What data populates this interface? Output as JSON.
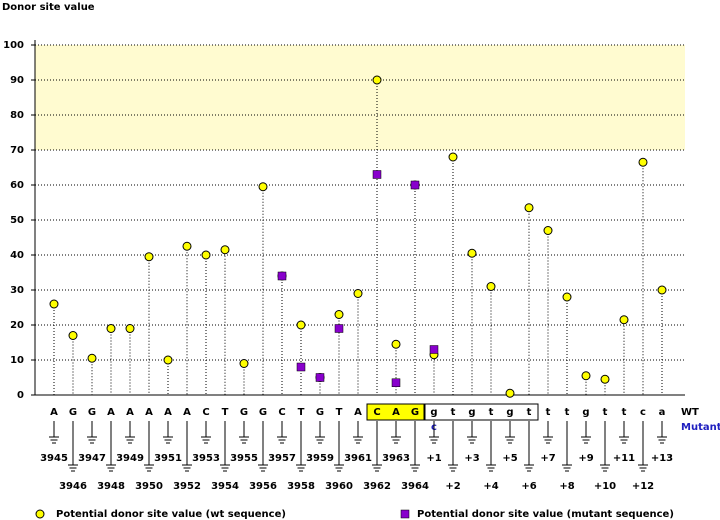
{
  "chart_data": {
    "type": "lollipop",
    "ylabel": "Donor site value",
    "categories": [
      "3945",
      "3946",
      "3947",
      "3948",
      "3949",
      "3950",
      "3951",
      "3952",
      "3953",
      "3954",
      "3955",
      "3956",
      "3957",
      "3958",
      "3959",
      "3960",
      "3961",
      "3962",
      "3963",
      "3964",
      "+1",
      "+2",
      "+3",
      "+4",
      "+5",
      "+6",
      "+7",
      "+8",
      "+9",
      "+10",
      "+11",
      "+12",
      "+13"
    ],
    "bases": [
      "A",
      "G",
      "G",
      "A",
      "A",
      "A",
      "A",
      "A",
      "C",
      "T",
      "G",
      "G",
      "C",
      "T",
      "G",
      "T",
      "A",
      "C",
      "A",
      "G",
      "g",
      "t",
      "g",
      "t",
      "g",
      "t",
      "t",
      "t",
      "g",
      "t",
      "t",
      "c",
      "a"
    ],
    "mutant_bases": [
      null,
      null,
      null,
      null,
      null,
      null,
      null,
      null,
      null,
      null,
      null,
      null,
      null,
      null,
      null,
      null,
      null,
      null,
      null,
      null,
      "c",
      null,
      null,
      null,
      null,
      null,
      null,
      null,
      null,
      null,
      null,
      null,
      null
    ],
    "row_labels": [
      "WT",
      "Mutant"
    ],
    "series": [
      {
        "name": "Potential donor site value (wt sequence)",
        "color": "#ffff00",
        "values": [
          26,
          17,
          10.5,
          19,
          19,
          39.5,
          10,
          42.5,
          40,
          41.5,
          9,
          59.5,
          34,
          20,
          5,
          23,
          29,
          90,
          14.5,
          60,
          11.5,
          68,
          40.5,
          31,
          0.5,
          53.5,
          47,
          28,
          5.5,
          4.5,
          21.5,
          66.5,
          30
        ]
      },
      {
        "name": "Potential donor site value (mutant sequence)",
        "color": "#8800cc",
        "values": [
          null,
          null,
          null,
          null,
          null,
          null,
          null,
          null,
          null,
          null,
          null,
          null,
          34,
          8,
          5,
          19,
          null,
          63,
          3.5,
          60,
          13,
          null,
          null,
          null,
          null,
          null,
          null,
          null,
          null,
          null,
          null,
          null,
          null
        ]
      }
    ],
    "ylim": [
      0,
      100
    ],
    "yticks": [
      0,
      10,
      20,
      30,
      40,
      50,
      60,
      70,
      80,
      90,
      100
    ],
    "highlight_range": [
      70,
      100
    ],
    "grid": true
  }
}
